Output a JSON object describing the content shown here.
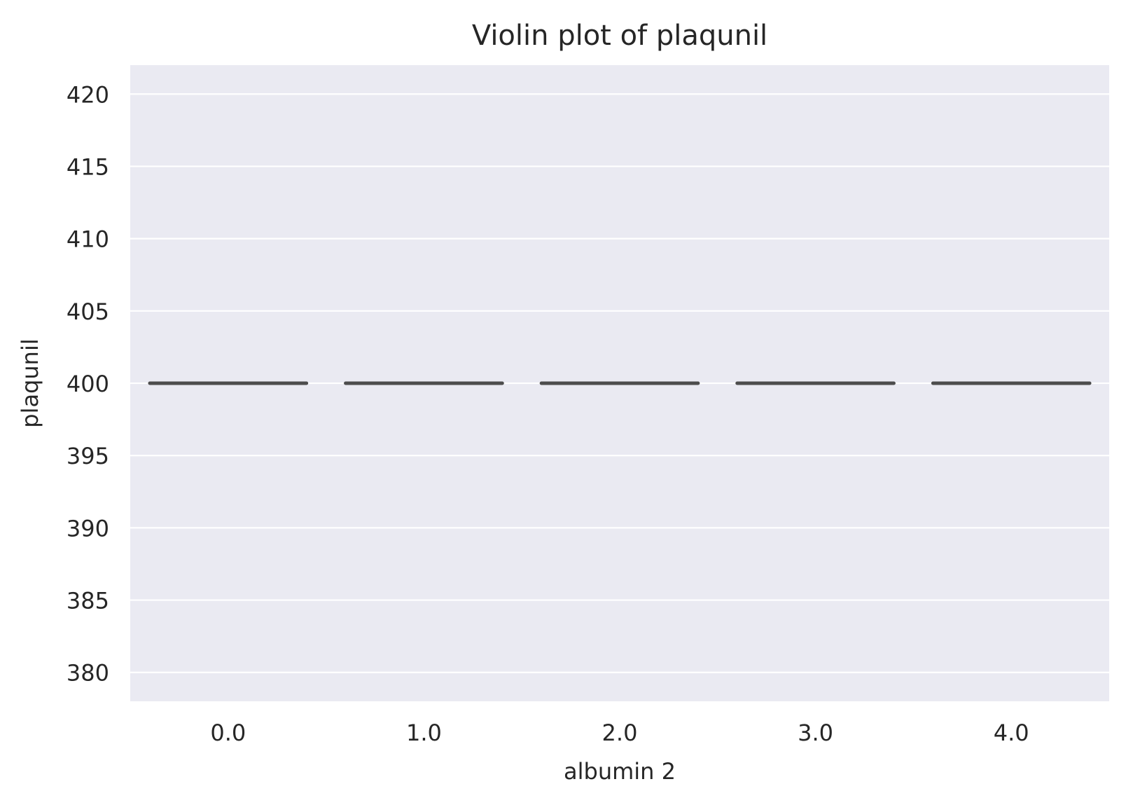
{
  "chart_data": {
    "type": "violin",
    "title": "Violin plot of plaqunil",
    "xlabel": "albumin 2",
    "ylabel": "plaqunil",
    "categories": [
      "0.0",
      "1.0",
      "2.0",
      "3.0",
      "4.0"
    ],
    "values": [
      400,
      400,
      400,
      400,
      400
    ],
    "ylim": [
      378,
      422
    ],
    "yticks": [
      380,
      385,
      390,
      395,
      400,
      405,
      410,
      415,
      420
    ],
    "grid": true,
    "colors": {
      "background": "#eaeaf2",
      "grid": "#ffffff",
      "mark": "#4d4d4d",
      "text": "#262626"
    }
  }
}
